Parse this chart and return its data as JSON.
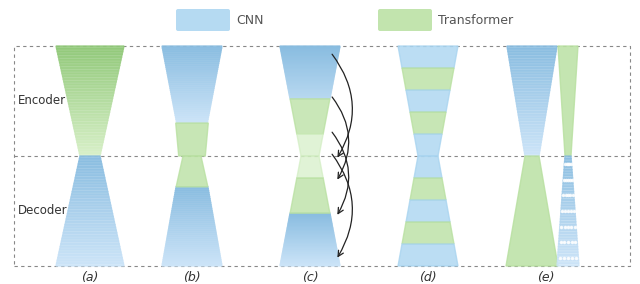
{
  "fig_width": 6.4,
  "fig_height": 2.84,
  "dpi": 100,
  "bg_color": "#ffffff",
  "cnn_color": "#a8d4f0",
  "cnn_color2": "#c5e3f7",
  "transformer_color": "#b8e0a0",
  "transformer_color2": "#d0edc0",
  "legend_cnn_label": "CNN",
  "legend_transformer_label": "Transformer",
  "encoder_label": "Encoder",
  "decoder_label": "Decoder",
  "col_labels": [
    "(a)",
    "(b)",
    "(c)",
    "(d)",
    "(e)"
  ]
}
